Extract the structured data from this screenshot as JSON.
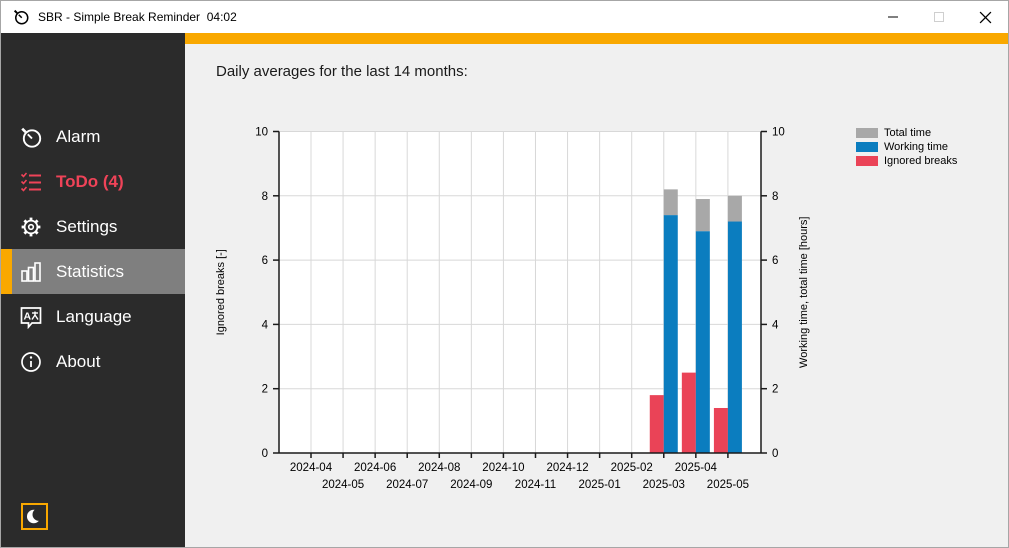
{
  "window": {
    "title": "SBR - Simple Break Reminder  04:02",
    "controls": {
      "minimize": "minimize",
      "maximize": "maximize",
      "close": "close"
    }
  },
  "sidebar": {
    "items": [
      {
        "label": "Alarm"
      },
      {
        "label": "ToDo (4)"
      },
      {
        "label": "Settings"
      },
      {
        "label": "Statistics"
      },
      {
        "label": "Language"
      },
      {
        "label": "About"
      }
    ],
    "active_item": "Statistics",
    "todo_color": "#ef4358",
    "accent_color": "#f9a800"
  },
  "content": {
    "heading": "Daily averages for the last 14 months:"
  },
  "chart_data": {
    "type": "bar",
    "title": "",
    "categories": [
      "2024-04",
      "2024-05",
      "2024-06",
      "2024-07",
      "2024-08",
      "2024-09",
      "2024-10",
      "2024-11",
      "2024-12",
      "2025-01",
      "2025-02",
      "2025-03",
      "2025-04",
      "2025-05"
    ],
    "series": [
      {
        "name": "Total time",
        "color": "#a8a8a8",
        "values": [
          null,
          null,
          null,
          null,
          null,
          null,
          null,
          null,
          null,
          null,
          null,
          8.2,
          7.9,
          8.0
        ]
      },
      {
        "name": "Working time",
        "color": "#0b7dbf",
        "values": [
          null,
          null,
          null,
          null,
          null,
          null,
          null,
          null,
          null,
          null,
          null,
          7.4,
          6.9,
          7.2
        ]
      },
      {
        "name": "Ignored breaks",
        "color": "#ea4357",
        "values": [
          null,
          null,
          null,
          null,
          null,
          null,
          null,
          null,
          null,
          null,
          null,
          1.8,
          2.5,
          1.4
        ]
      }
    ],
    "ylabel_left": "Ignored breaks [-]",
    "ylabel_right": "Working time, total time [hours]",
    "ylim": [
      0,
      10
    ],
    "yticks": [
      0,
      2,
      4,
      6,
      8,
      10
    ],
    "grid": true,
    "legend_position": "top-right"
  }
}
